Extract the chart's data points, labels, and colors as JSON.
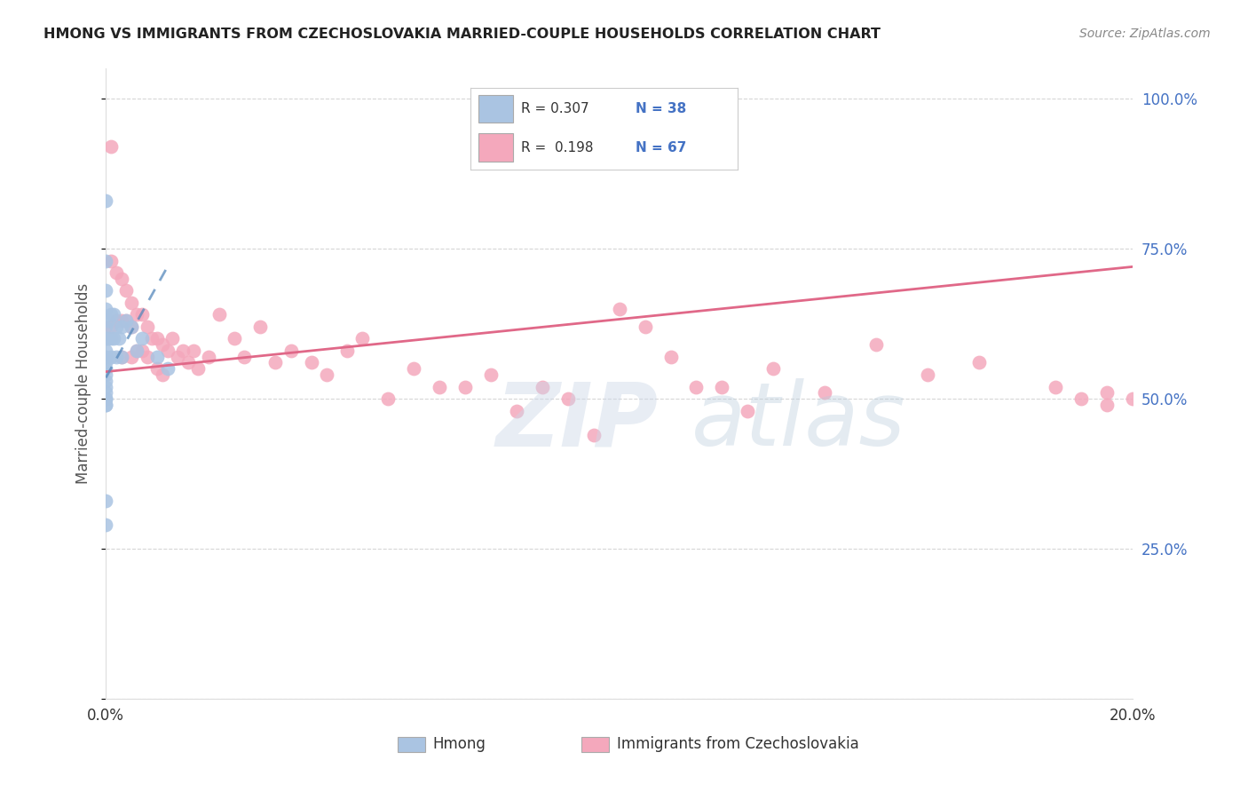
{
  "title": "HMONG VS IMMIGRANTS FROM CZECHOSLOVAKIA MARRIED-COUPLE HOUSEHOLDS CORRELATION CHART",
  "source": "Source: ZipAtlas.com",
  "ylabel": "Married-couple Households",
  "xmin": 0.0,
  "xmax": 0.2,
  "ymin": 0.0,
  "ymax": 1.05,
  "color_blue": "#aac4e2",
  "color_pink": "#f4a8bc",
  "line_blue": "#5588bb",
  "line_pink": "#e06888",
  "background": "#ffffff",
  "grid_color": "#cccccc",
  "hmong_x": [
    0.0,
    0.0,
    0.0,
    0.0,
    0.0,
    0.0,
    0.0,
    0.0,
    0.0,
    0.0,
    0.0,
    0.0,
    0.0,
    0.0,
    0.0,
    0.0,
    0.0,
    0.0,
    0.0,
    0.0,
    0.0005,
    0.0005,
    0.001,
    0.001,
    0.001,
    0.0015,
    0.0015,
    0.002,
    0.002,
    0.0025,
    0.003,
    0.003,
    0.004,
    0.005,
    0.006,
    0.007,
    0.01,
    0.012
  ],
  "hmong_y": [
    0.83,
    0.73,
    0.68,
    0.65,
    0.62,
    0.6,
    0.58,
    0.57,
    0.56,
    0.55,
    0.54,
    0.53,
    0.52,
    0.51,
    0.5,
    0.5,
    0.49,
    0.49,
    0.33,
    0.29,
    0.63,
    0.6,
    0.64,
    0.6,
    0.57,
    0.64,
    0.6,
    0.62,
    0.57,
    0.6,
    0.62,
    0.57,
    0.63,
    0.62,
    0.58,
    0.6,
    0.57,
    0.55
  ],
  "czech_x": [
    0.001,
    0.001,
    0.001,
    0.002,
    0.002,
    0.003,
    0.003,
    0.003,
    0.004,
    0.004,
    0.005,
    0.005,
    0.005,
    0.006,
    0.006,
    0.007,
    0.007,
    0.008,
    0.008,
    0.009,
    0.01,
    0.01,
    0.011,
    0.011,
    0.012,
    0.013,
    0.014,
    0.015,
    0.016,
    0.017,
    0.018,
    0.02,
    0.022,
    0.025,
    0.027,
    0.03,
    0.033,
    0.036,
    0.04,
    0.043,
    0.047,
    0.05,
    0.055,
    0.06,
    0.065,
    0.07,
    0.075,
    0.08,
    0.085,
    0.09,
    0.095,
    0.1,
    0.105,
    0.11,
    0.115,
    0.12,
    0.125,
    0.13,
    0.14,
    0.15,
    0.16,
    0.17,
    0.185,
    0.19,
    0.195,
    0.195,
    0.2
  ],
  "czech_y": [
    0.92,
    0.73,
    0.62,
    0.71,
    0.63,
    0.7,
    0.63,
    0.57,
    0.68,
    0.63,
    0.66,
    0.62,
    0.57,
    0.64,
    0.58,
    0.64,
    0.58,
    0.62,
    0.57,
    0.6,
    0.6,
    0.55,
    0.59,
    0.54,
    0.58,
    0.6,
    0.57,
    0.58,
    0.56,
    0.58,
    0.55,
    0.57,
    0.64,
    0.6,
    0.57,
    0.62,
    0.56,
    0.58,
    0.56,
    0.54,
    0.58,
    0.6,
    0.5,
    0.55,
    0.52,
    0.52,
    0.54,
    0.48,
    0.52,
    0.5,
    0.44,
    0.65,
    0.62,
    0.57,
    0.52,
    0.52,
    0.48,
    0.55,
    0.51,
    0.59,
    0.54,
    0.56,
    0.52,
    0.5,
    0.51,
    0.49,
    0.5
  ],
  "hmong_line_x": [
    0.0,
    0.012
  ],
  "hmong_line_y": [
    0.535,
    0.72
  ],
  "czech_line_x": [
    0.0,
    0.2
  ],
  "czech_line_y": [
    0.545,
    0.72
  ]
}
